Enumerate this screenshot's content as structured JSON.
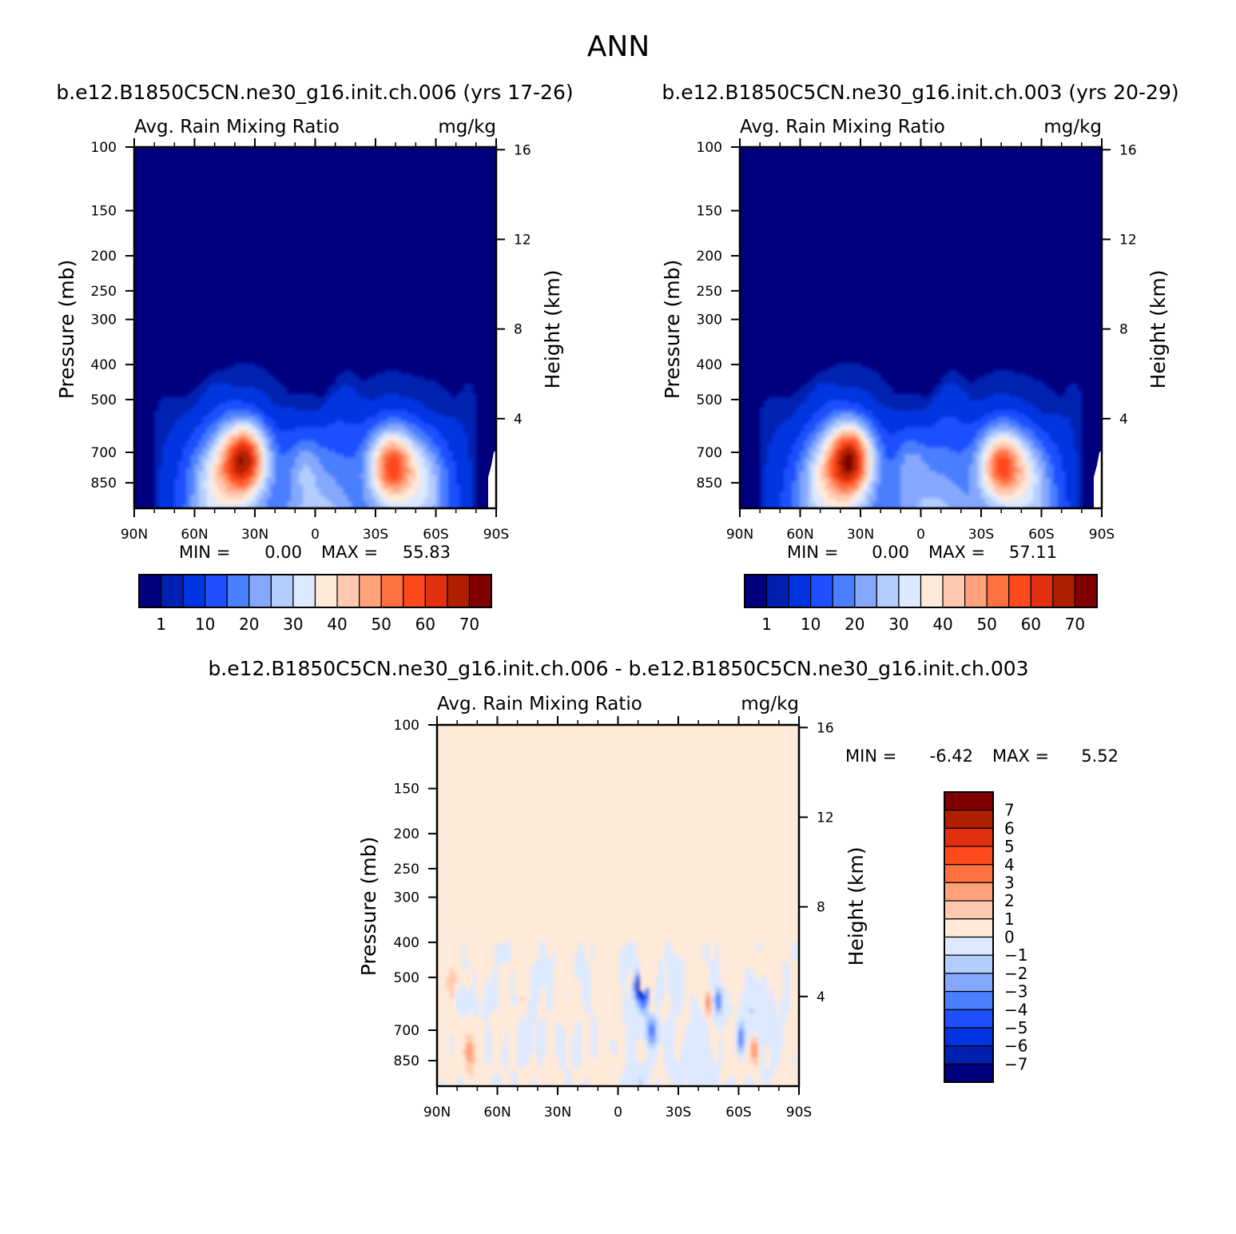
{
  "main_title": "ANN",
  "colors": {
    "cmap": [
      "#00007f",
      "#0020b0",
      "#0034e0",
      "#1e50ff",
      "#4a7fff",
      "#85a8ff",
      "#b4cdff",
      "#dde9ff",
      "#ffe9d8",
      "#ffc9b0",
      "#ffa27c",
      "#ff7040",
      "#ff4a1e",
      "#e03010",
      "#b02000",
      "#800000"
    ],
    "background_blue": "#00007f",
    "diff_background": "#ffe9d8"
  },
  "chart_data": [
    {
      "type": "heatmap",
      "case_title": "b.e12.B1850C5CN.ne30_g16.init.ch.006 (yrs 17-26)",
      "field_label": "Avg. Rain Mixing Ratio",
      "units": "mg/kg",
      "ylabel": "Pressure (mb)",
      "y2label": "Height (km)",
      "x_ticks": [
        "90N",
        "60N",
        "30N",
        "0",
        "30S",
        "60S",
        "90S"
      ],
      "y_ticks": [
        "100",
        "150",
        "200",
        "250",
        "300",
        "400",
        "500",
        "700",
        "850"
      ],
      "y2_ticks": [
        "16",
        "12",
        "8",
        "4"
      ],
      "min_label": "MIN =",
      "min_value": "0.00",
      "max_label": "MAX =",
      "max_value": "55.83",
      "colorbar_labels": [
        "1",
        "10",
        "20",
        "30",
        "40",
        "50",
        "60",
        "70"
      ],
      "hotspots": [
        {
          "lat": 35,
          "p": 730,
          "peak": 55.8
        },
        {
          "lat": -38,
          "p": 760,
          "peak": 47
        }
      ]
    },
    {
      "type": "heatmap",
      "case_title": "b.e12.B1850C5CN.ne30_g16.init.ch.003 (yrs 20-29)",
      "field_label": "Avg. Rain Mixing Ratio",
      "units": "mg/kg",
      "ylabel": "Pressure (mb)",
      "y2label": "Height (km)",
      "x_ticks": [
        "90N",
        "60N",
        "30N",
        "0",
        "30S",
        "60S",
        "90S"
      ],
      "y_ticks": [
        "100",
        "150",
        "200",
        "250",
        "300",
        "400",
        "500",
        "700",
        "850"
      ],
      "y2_ticks": [
        "16",
        "12",
        "8",
        "4"
      ],
      "min_label": "MIN =",
      "min_value": "0.00",
      "max_label": "MAX =",
      "max_value": "57.11",
      "colorbar_labels": [
        "1",
        "10",
        "20",
        "30",
        "40",
        "50",
        "60",
        "70"
      ],
      "hotspots": [
        {
          "lat": 35,
          "p": 730,
          "peak": 57.1
        },
        {
          "lat": -40,
          "p": 760,
          "peak": 46
        }
      ]
    },
    {
      "type": "heatmap",
      "case_title": "b.e12.B1850C5CN.ne30_g16.init.ch.006 - b.e12.B1850C5CN.ne30_g16.init.ch.003",
      "field_label": "Avg. Rain Mixing Ratio",
      "units": "mg/kg",
      "ylabel": "Pressure (mb)",
      "y2label": "Height (km)",
      "x_ticks": [
        "90N",
        "60N",
        "30N",
        "0",
        "30S",
        "60S",
        "90S"
      ],
      "y_ticks": [
        "100",
        "150",
        "200",
        "250",
        "300",
        "400",
        "500",
        "700",
        "850"
      ],
      "y2_ticks": [
        "16",
        "12",
        "8",
        "4"
      ],
      "min_label": "MIN =",
      "min_value": "-6.42",
      "max_label": "MAX =",
      "max_value": "5.52",
      "colorbar_labels": [
        "7",
        "6",
        "5",
        "4",
        "3",
        "2",
        "1",
        "0",
        "-1",
        "-2",
        "-3",
        "-4",
        "-5",
        "-6",
        "-7"
      ]
    }
  ]
}
